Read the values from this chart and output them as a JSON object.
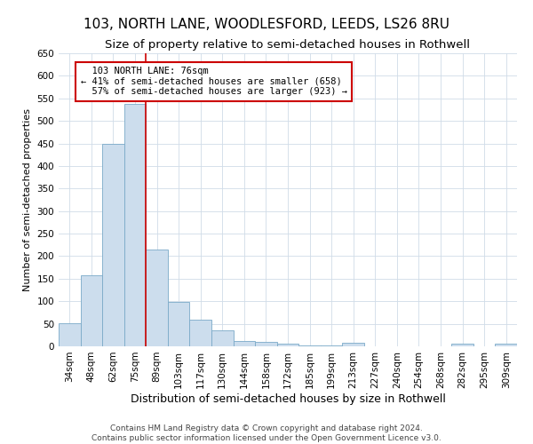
{
  "title1": "103, NORTH LANE, WOODLESFORD, LEEDS, LS26 8RU",
  "title2": "Size of property relative to semi-detached houses in Rothwell",
  "xlabel": "Distribution of semi-detached houses by size in Rothwell",
  "ylabel": "Number of semi-detached properties",
  "footer1": "Contains HM Land Registry data © Crown copyright and database right 2024.",
  "footer2": "Contains public sector information licensed under the Open Government Licence v3.0.",
  "categories": [
    "34sqm",
    "48sqm",
    "62sqm",
    "75sqm",
    "89sqm",
    "103sqm",
    "117sqm",
    "130sqm",
    "144sqm",
    "158sqm",
    "172sqm",
    "185sqm",
    "199sqm",
    "213sqm",
    "227sqm",
    "240sqm",
    "254sqm",
    "268sqm",
    "282sqm",
    "295sqm",
    "309sqm"
  ],
  "values": [
    52,
    157,
    449,
    537,
    214,
    98,
    59,
    35,
    11,
    9,
    6,
    1,
    1,
    7,
    0,
    0,
    0,
    0,
    5,
    0,
    5
  ],
  "bar_color": "#ccdded",
  "bar_edge_color": "#7aaac8",
  "reference_line_x": 3.5,
  "reference_label": "103 NORTH LANE: 76sqm",
  "smaller_pct": "41%",
  "smaller_count": 658,
  "larger_pct": "57%",
  "larger_count": 923,
  "annotation_box_color": "#cc0000",
  "ylim": [
    0,
    650
  ],
  "yticks": [
    0,
    50,
    100,
    150,
    200,
    250,
    300,
    350,
    400,
    450,
    500,
    550,
    600,
    650
  ],
  "title1_fontsize": 11,
  "title2_fontsize": 9.5,
  "xlabel_fontsize": 9,
  "ylabel_fontsize": 8,
  "tick_fontsize": 7.5,
  "annotation_fontsize": 7.5,
  "footer_fontsize": 6.5,
  "background_color": "#ffffff",
  "grid_color": "#d0dce8"
}
